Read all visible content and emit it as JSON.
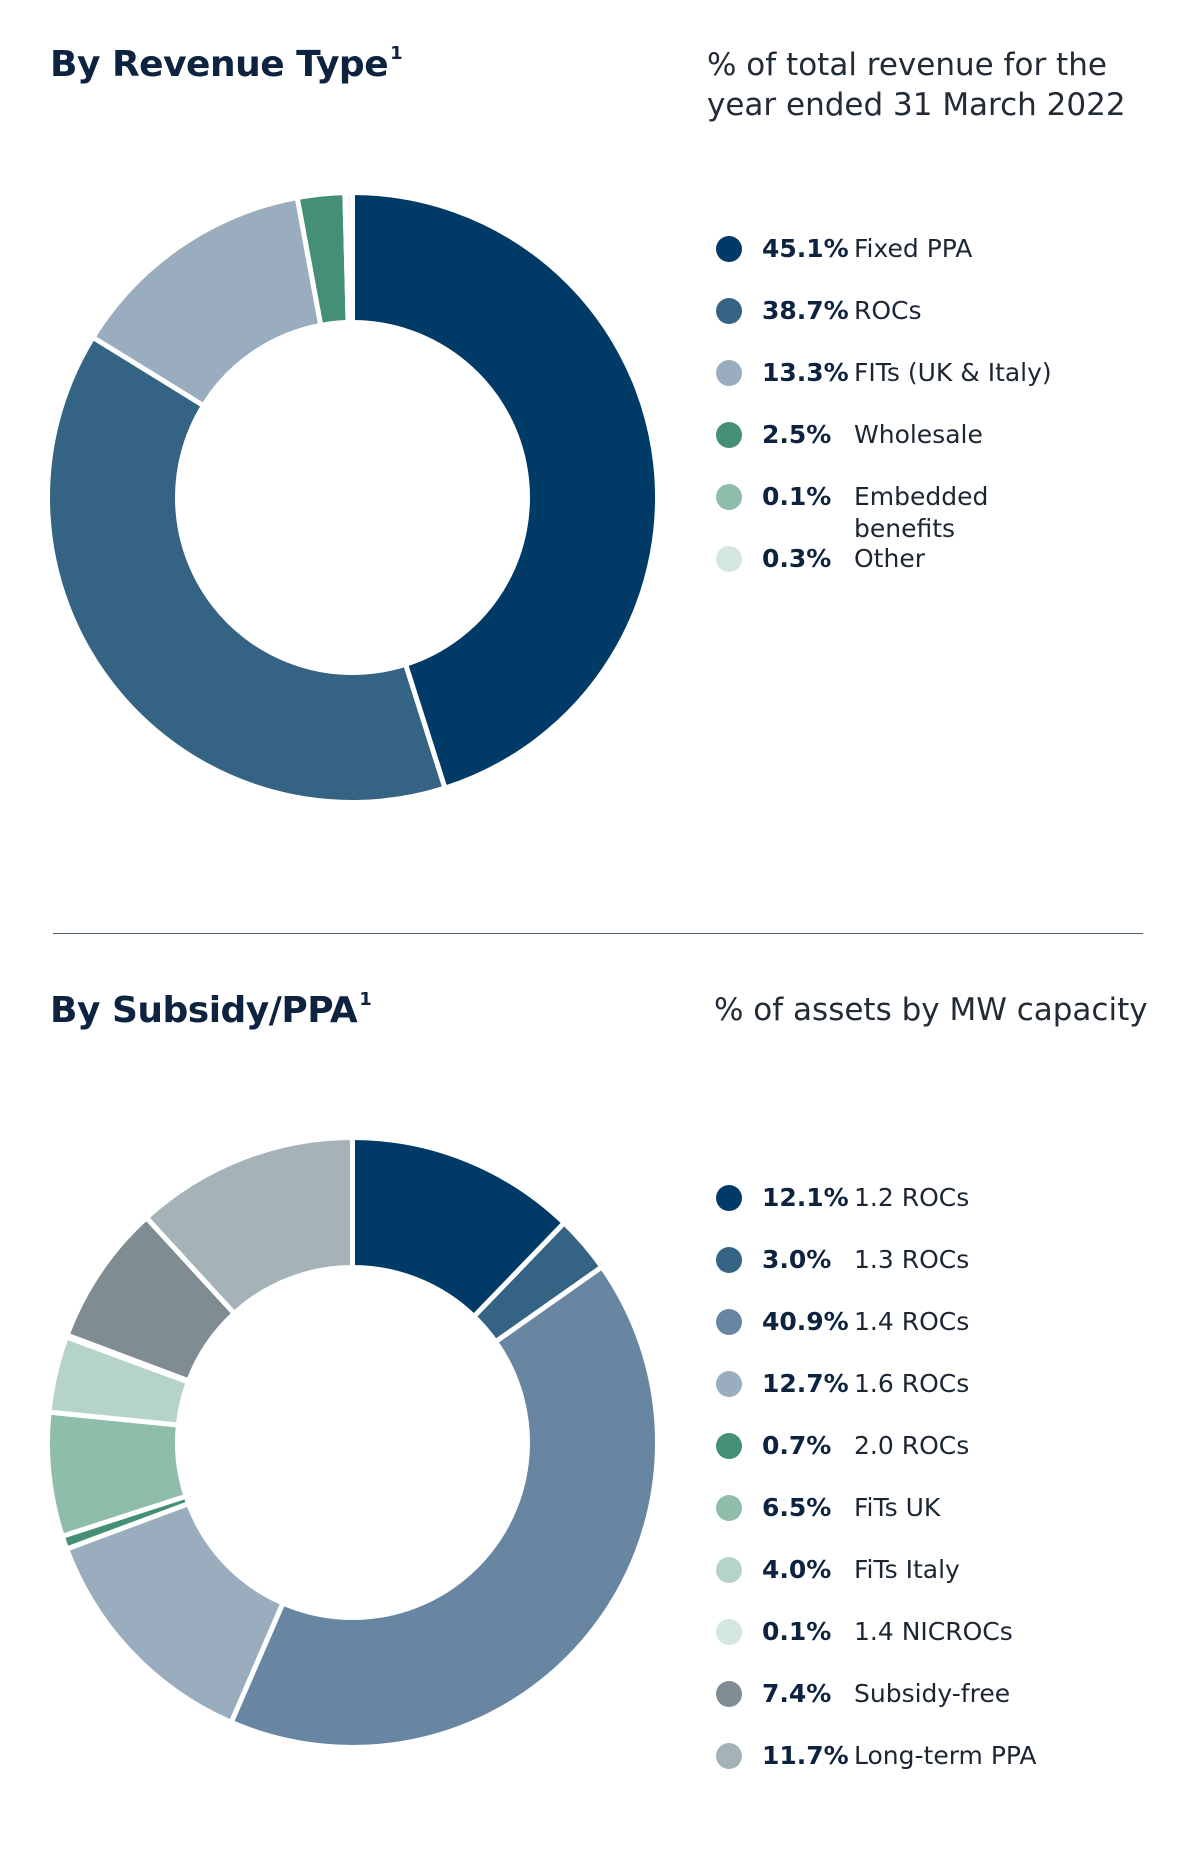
{
  "section1": {
    "title": "By Revenue Type",
    "footnote": "1",
    "subtitle": "% of total revenue for the\nyear ended 31 March 2022"
  },
  "section2": {
    "title": "By Subsidy/PPA",
    "footnote": "1",
    "subtitle": "% of assets by MW capacity"
  },
  "chart_data": [
    {
      "type": "pie",
      "style": "donut",
      "legend_position": "right",
      "categories": [
        "Fixed PPA",
        "ROCs",
        "FITs (UK & Italy)",
        "Wholesale",
        "Embedded benefits",
        "Other"
      ],
      "values": [
        45.1,
        38.7,
        13.3,
        2.5,
        0.1,
        0.3
      ],
      "value_labels": [
        "45.1%",
        "38.7%",
        "13.3%",
        "2.5%",
        "0.1%",
        "0.3%"
      ],
      "colors": [
        "#003a66",
        "#346384",
        "#99adbf",
        "#448f76",
        "#8ebdaa",
        "#d4e6e0"
      ]
    },
    {
      "type": "pie",
      "style": "donut",
      "legend_position": "right",
      "categories": [
        "1.2 ROCs",
        "1.3 ROCs",
        "1.4 ROCs",
        "1.6 ROCs",
        "2.0 ROCs",
        "FiTs UK",
        "FiTs Italy",
        "1.4 NICROCs",
        "Subsidy-free",
        "Long-term PPA"
      ],
      "values": [
        12.1,
        3.0,
        40.9,
        12.7,
        0.7,
        6.5,
        4.0,
        0.1,
        7.4,
        11.7
      ],
      "value_labels": [
        "12.1%",
        "3.0%",
        "40.9%",
        "12.7%",
        "0.7%",
        "6.5%",
        "4.0%",
        "0.1%",
        "7.4%",
        "11.7%"
      ],
      "colors": [
        "#003a66",
        "#346384",
        "#6886a2",
        "#99adbf",
        "#448f76",
        "#8ebdaa",
        "#b5d3c8",
        "#d4e6e0",
        "#7f8d93",
        "#a5b2b8"
      ]
    }
  ]
}
